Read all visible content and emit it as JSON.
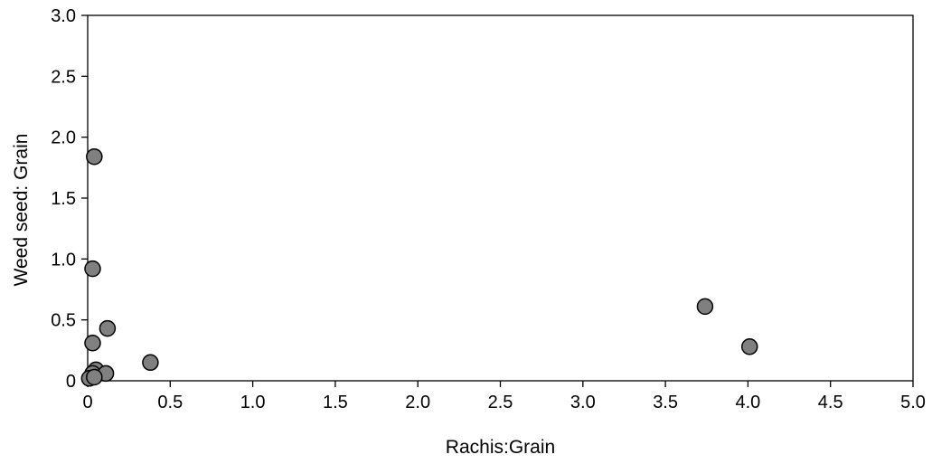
{
  "chart_data": {
    "type": "scatter",
    "title": "",
    "xlabel": "Rachis:Grain",
    "ylabel": "Weed seed: Grain",
    "xlim": [
      0,
      5.0
    ],
    "ylim": [
      0,
      3.0
    ],
    "x_ticks": [
      0,
      0.5,
      1.0,
      1.5,
      2.0,
      2.5,
      3.0,
      3.5,
      4.0,
      4.5,
      5.0
    ],
    "x_tick_labels": [
      "0",
      "0.5",
      "1.0",
      "1.5",
      "2.0",
      "2.5",
      "3.0",
      "3.5",
      "4.0",
      "4.5",
      "5.0"
    ],
    "y_ticks": [
      0,
      0.5,
      1.0,
      1.5,
      2.0,
      2.5,
      3.0
    ],
    "y_tick_labels": [
      "0",
      "0.5",
      "1.0",
      "1.5",
      "2.0",
      "2.5",
      "3.0"
    ],
    "grid": false,
    "legend": "none",
    "marker_color": "#808080",
    "points": [
      {
        "x": 0.04,
        "y": 1.84
      },
      {
        "x": 0.03,
        "y": 0.92
      },
      {
        "x": 0.12,
        "y": 0.43
      },
      {
        "x": 0.03,
        "y": 0.31
      },
      {
        "x": 0.38,
        "y": 0.15
      },
      {
        "x": 0.05,
        "y": 0.09
      },
      {
        "x": 0.03,
        "y": 0.06
      },
      {
        "x": 0.11,
        "y": 0.06
      },
      {
        "x": 0.01,
        "y": 0.02
      },
      {
        "x": 0.04,
        "y": 0.03
      },
      {
        "x": 3.74,
        "y": 0.61
      },
      {
        "x": 4.01,
        "y": 0.28
      }
    ]
  }
}
